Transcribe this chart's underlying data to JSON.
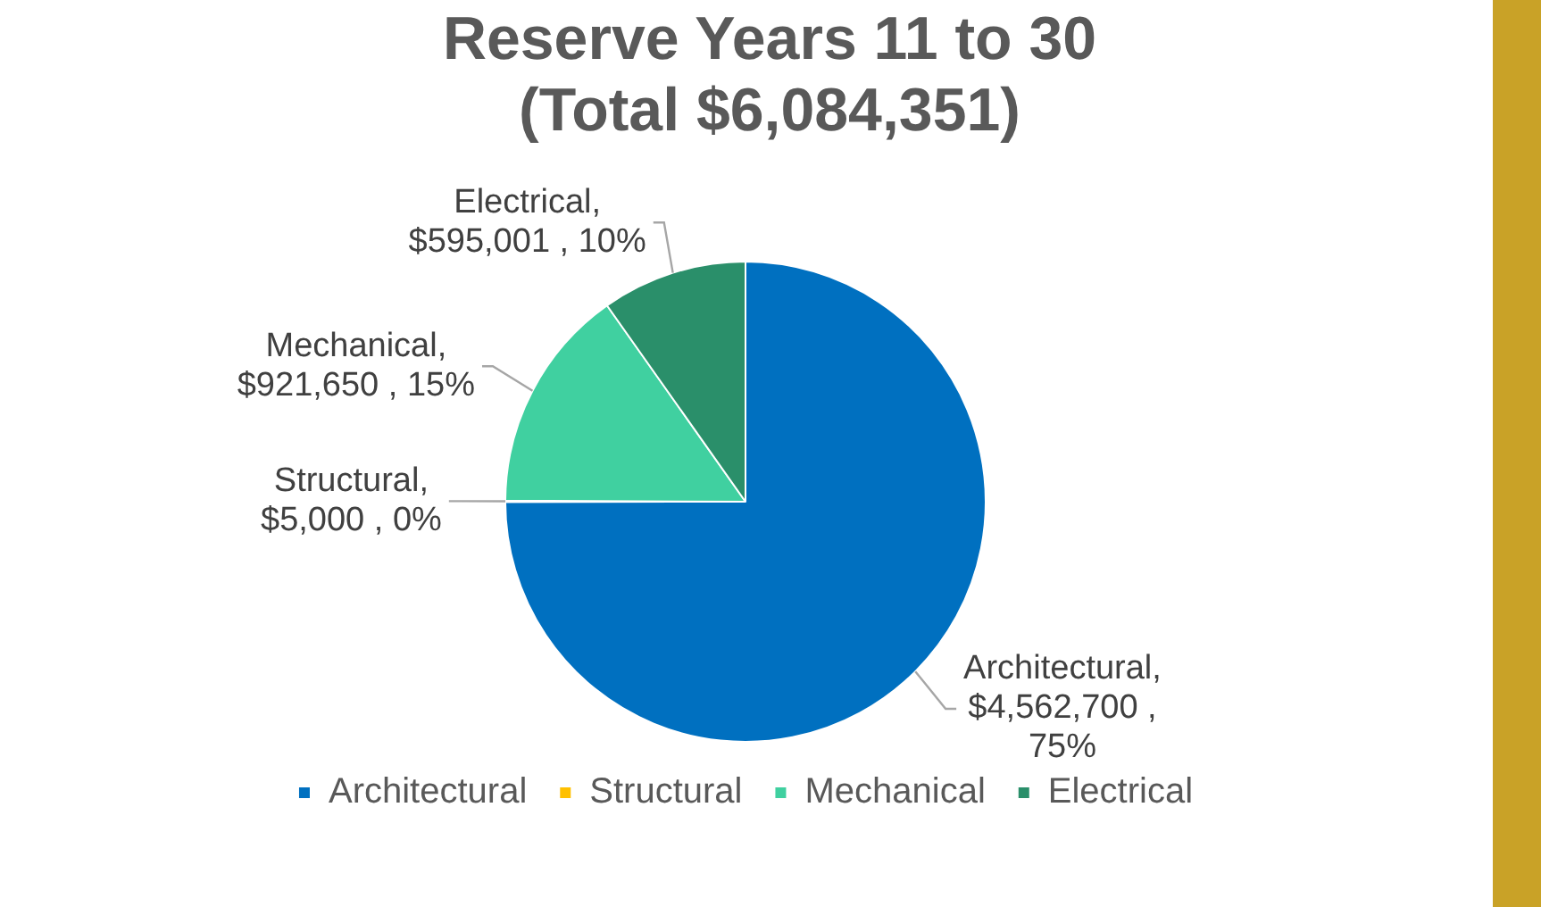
{
  "chart_data": {
    "type": "pie",
    "title": "Reserve Years 11 to 30 (Total $6,084,351)",
    "categories": [
      "Architectural",
      "Structural",
      "Mechanical",
      "Electrical"
    ],
    "values": [
      4562700,
      5000,
      921650,
      595001
    ],
    "colors": [
      "#0070c0",
      "#ffc000",
      "#40d0a0",
      "#2a8f6a"
    ],
    "value_labels": [
      "Architectural, $4,562,700 , 75%",
      "Structural, $5,000 , 0%",
      "Mechanical, $921,650 , 15%",
      "Electrical, $595,001 , 10%"
    ],
    "legend": "bottom"
  }
}
